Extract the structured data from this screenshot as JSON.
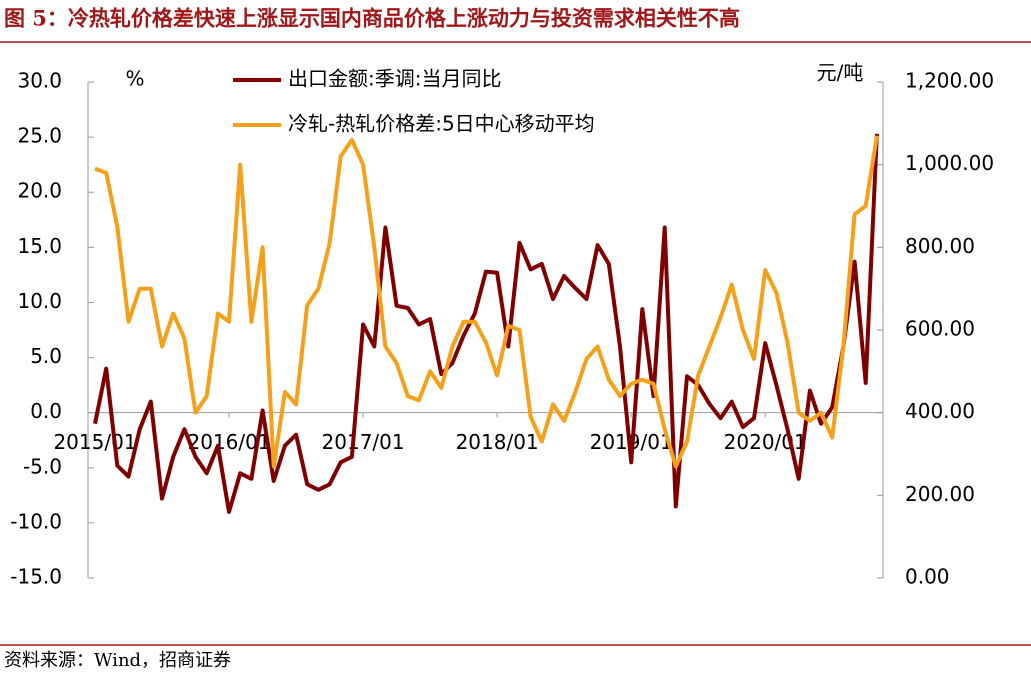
{
  "chart_data": {
    "type": "line",
    "title": "图 5：冷热轧价格差快速上涨显示国内商品价格上涨动力与投资需求相关性不高",
    "source": "资料来源：Wind，招商证券",
    "y_label": "%",
    "y2_label": "元/吨",
    "categories": [
      "2015/01",
      null,
      null,
      null,
      null,
      null,
      null,
      null,
      null,
      null,
      null,
      null,
      "2016/01",
      null,
      null,
      null,
      null,
      null,
      null,
      null,
      null,
      null,
      null,
      null,
      "2017/01",
      null,
      null,
      null,
      null,
      null,
      null,
      null,
      null,
      null,
      null,
      null,
      "2018/01",
      null,
      null,
      null,
      null,
      null,
      null,
      null,
      null,
      null,
      null,
      null,
      "2019/01",
      null,
      null,
      null,
      null,
      null,
      null,
      null,
      null,
      null,
      null,
      null,
      "2020/01",
      null,
      null,
      null,
      null,
      null,
      null,
      null,
      null,
      null,
      null
    ],
    "series": [
      {
        "name": "出口金额:季调:当月同比",
        "color": "#800000",
        "axis": "y",
        "values": [
          -1,
          4,
          -4.8,
          -5.8,
          -1.5,
          1,
          -7.8,
          -4,
          -1.5,
          -4,
          -5.5,
          -3,
          -9,
          -5.5,
          -6,
          0.2,
          -6.2,
          -3,
          -2,
          -6.5,
          -7,
          -6.5,
          -4.5,
          -4,
          8,
          6,
          16.8,
          9.7,
          9.5,
          8,
          8.5,
          3.5,
          4.5,
          7,
          9,
          12.8,
          12.7,
          6,
          15.4,
          13,
          13.5,
          10.3,
          12.4,
          11.3,
          10.3,
          15.2,
          13.5,
          6,
          -4.5,
          9.4,
          1.5,
          16.8,
          -8.5,
          3.3,
          2.5,
          0.8,
          -0.5,
          1,
          -1.3,
          -0.5,
          6.3,
          2.5,
          -1.5,
          -6,
          2,
          -1,
          0.5,
          6,
          13.7,
          2.7,
          25.3
        ]
      },
      {
        "name": "冷轧-热轧价格差:5日中心移动平均",
        "color": "#f5a01a",
        "axis": "y2",
        "values": [
          990,
          980,
          850,
          620,
          700,
          700,
          560,
          640,
          580,
          400,
          440,
          640,
          620,
          1000,
          620,
          800,
          270,
          450,
          420,
          660,
          700,
          810,
          1020,
          1060,
          1000,
          800,
          560,
          520,
          440,
          430,
          500,
          460,
          560,
          620,
          620,
          570,
          490,
          610,
          600,
          390,
          330,
          420,
          380,
          450,
          530,
          560,
          480,
          440,
          470,
          480,
          470,
          360,
          270,
          330,
          490,
          560,
          630,
          710,
          600,
          530,
          745,
          690,
          570,
          400,
          380,
          400,
          340,
          560,
          880,
          900,
          1070
        ]
      }
    ],
    "ylim": [
      -15,
      30
    ],
    "yticks": [
      {
        "value": -15,
        "label": "-15.0"
      },
      {
        "value": -10,
        "label": "-10.0"
      },
      {
        "value": -5,
        "label": "-5.0"
      },
      {
        "value": 0,
        "label": "0.0"
      },
      {
        "value": 5,
        "label": "5.0"
      },
      {
        "value": 10,
        "label": "10.0"
      },
      {
        "value": 15,
        "label": "15.0"
      },
      {
        "value": 20,
        "label": "20.0"
      },
      {
        "value": 25,
        "label": "25.0"
      },
      {
        "value": 30,
        "label": "30.0"
      }
    ],
    "y2lim": [
      0,
      1200
    ],
    "y2ticks": [
      {
        "value": 0,
        "label": "0.00"
      },
      {
        "value": 200,
        "label": "200.00"
      },
      {
        "value": 400,
        "label": "400.00"
      },
      {
        "value": 600,
        "label": "600.00"
      },
      {
        "value": 800,
        "label": "800.00"
      },
      {
        "value": 1000,
        "label": "1,000.00"
      },
      {
        "value": 1200,
        "label": "1,200.00"
      }
    ]
  }
}
